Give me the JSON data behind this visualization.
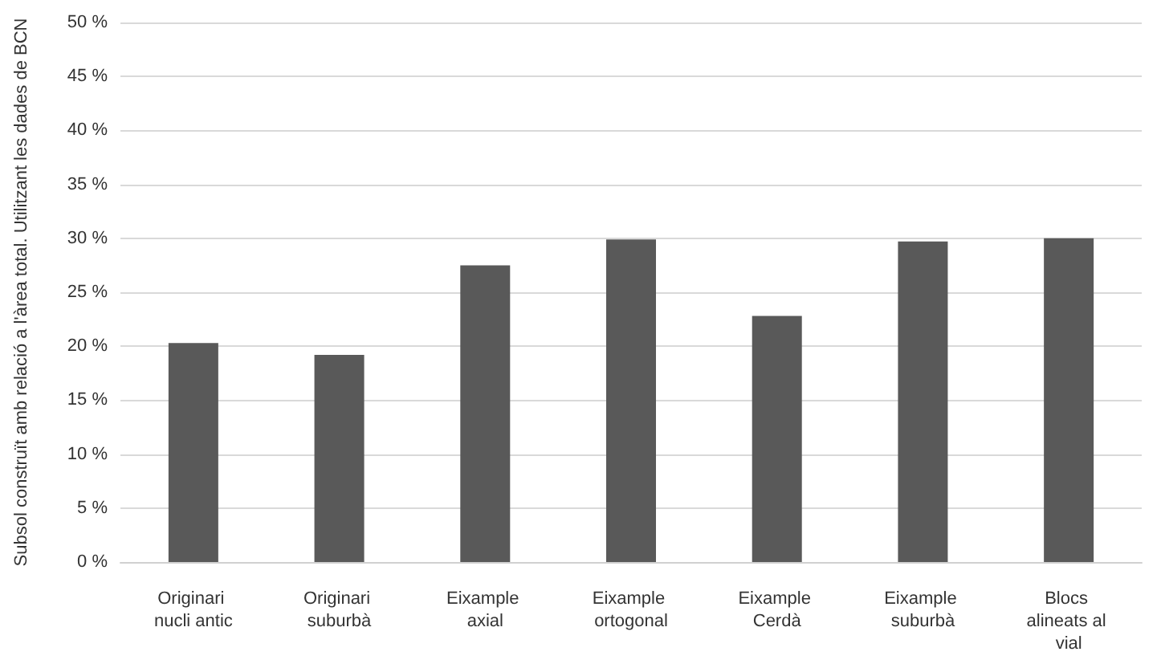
{
  "chart_data": {
    "type": "bar",
    "ylabel": "Subsol construït amb relació a l'àrea total. Utilitzant les dades de BCN",
    "categories": [
      "Originari nucli antic",
      "Originari suburbà",
      "Eixample axial",
      "Eixample ortogonal",
      "Eixample Cerdà",
      "Eixample suburbà",
      "Blocs alineats al vial"
    ],
    "values": [
      20.3,
      19.2,
      27.5,
      29.9,
      22.8,
      29.7,
      30.0
    ],
    "color": "#595959",
    "ylim": [
      0,
      50
    ],
    "yticks": [
      {
        "value": 0,
        "label": "0 %"
      },
      {
        "value": 5,
        "label": "5 %"
      },
      {
        "value": 10,
        "label": "10 %"
      },
      {
        "value": 15,
        "label": "15 %"
      },
      {
        "value": 20,
        "label": "20 %"
      },
      {
        "value": 25,
        "label": "25 %"
      },
      {
        "value": 30,
        "label": "30 %"
      },
      {
        "value": 35,
        "label": "35 %"
      },
      {
        "value": 40,
        "label": "40 %"
      },
      {
        "value": 45,
        "label": "45 %"
      },
      {
        "value": 50,
        "label": "50 %"
      }
    ],
    "grid": "y"
  }
}
